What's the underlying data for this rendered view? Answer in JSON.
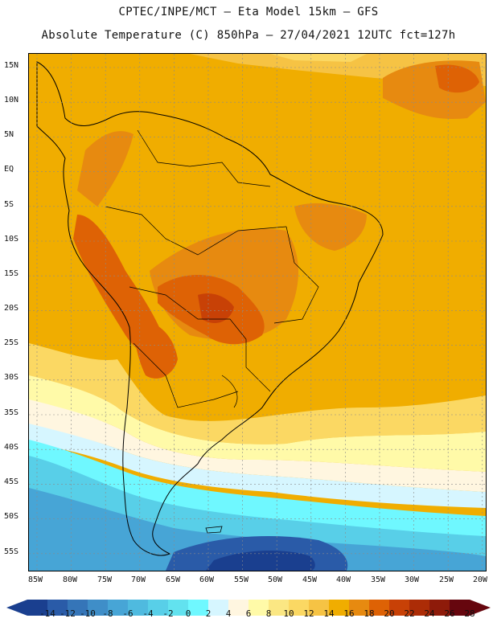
{
  "header": {
    "line1": "CPTEC/INPE/MCT –  Eta Model 15km – GFS",
    "line2": "Absolute Temperature (C) 850hPa – 27/04/2021 12UTC fct=127h"
  },
  "map": {
    "region": "South America",
    "field": "Absolute Temperature 850hPa",
    "lat_labels": [
      "15N",
      "10N",
      "5N",
      "EQ",
      "5S",
      "10S",
      "15S",
      "20S",
      "25S",
      "30S",
      "35S",
      "40S",
      "45S",
      "50S",
      "55S"
    ],
    "lon_labels": [
      "85W",
      "80W",
      "75W",
      "70W",
      "65W",
      "60W",
      "55W",
      "50W",
      "45W",
      "40W",
      "35W",
      "30W",
      "25W",
      "20W"
    ]
  },
  "colorbar": {
    "labels": [
      "-14",
      "-12",
      "-10",
      "-8",
      "-6",
      "-4",
      "-2",
      "0",
      "2",
      "4",
      "6",
      "8",
      "10",
      "12",
      "14",
      "16",
      "18",
      "20",
      "22",
      "24",
      "26",
      "28"
    ],
    "colors": [
      "#1a3f8f",
      "#2a5ba8",
      "#3575b8",
      "#3f8ec8",
      "#47a5d6",
      "#4fbadf",
      "#58cfe8",
      "#62e2ef",
      "#6ff8ff",
      "#d6f6ff",
      "#fff6e0",
      "#fffaa8",
      "#fbe783",
      "#fbd863",
      "#f6c344",
      "#f0ad00",
      "#e78a10",
      "#de6205",
      "#c84106",
      "#ac2c06",
      "#8e1b0a",
      "#66060e"
    ],
    "left_arrow_color": "#1a3f8f",
    "right_arrow_color": "#66060e"
  }
}
